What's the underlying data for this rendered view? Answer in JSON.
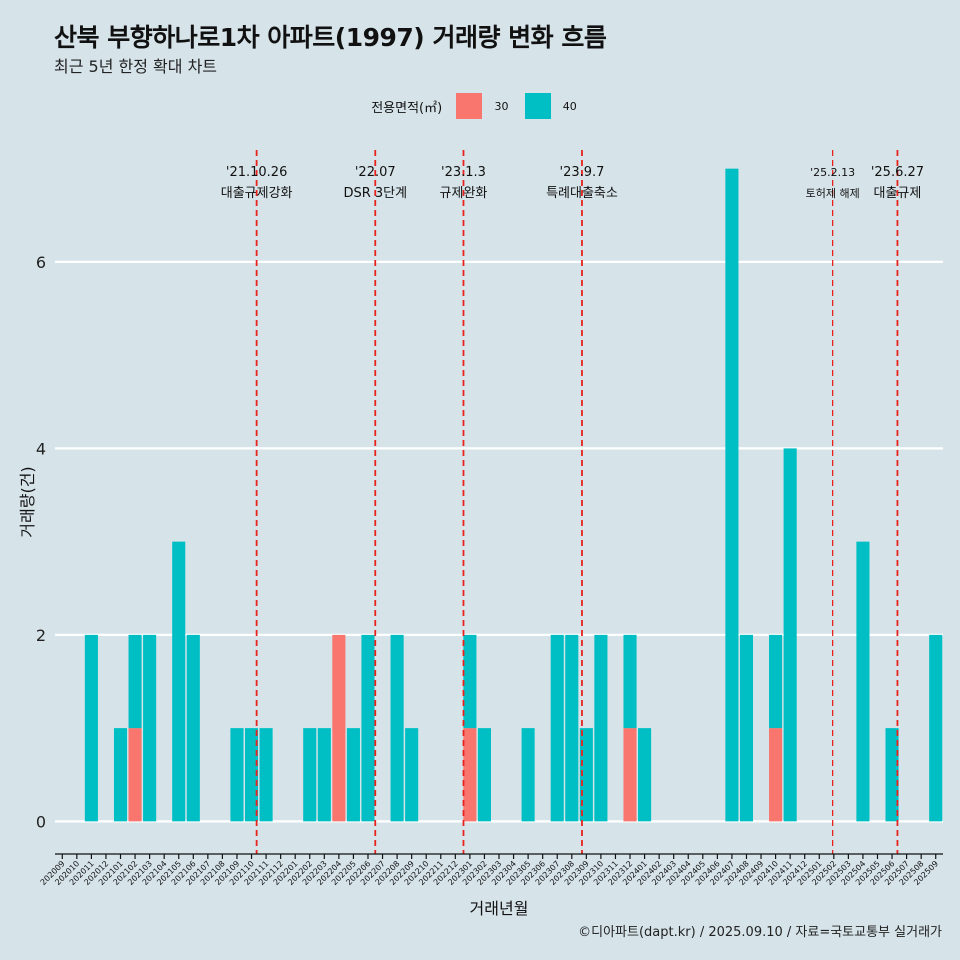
{
  "title": "산북 부향하나로1차 아파트(1997) 거래량 변화 흐름",
  "subtitle": "최근 5년 한정 확대 차트",
  "caption": "©디아파트(dapt.kr) / 2025.09.10 / 자료=국토교통부 실거래가",
  "legend": {
    "title": "전용면적(㎡)",
    "items": [
      {
        "label": "30",
        "color": "#f8766d"
      },
      {
        "label": "40",
        "color": "#00bfc4"
      }
    ]
  },
  "chart_data": {
    "type": "bar",
    "xlabel": "거래년월",
    "ylabel": "거래량(건)",
    "ylim": [
      -0.35,
      7.2
    ],
    "yticks": [
      0,
      2,
      4,
      6
    ],
    "grid": true,
    "legend_position": "top",
    "categories": [
      "202009",
      "202010",
      "202011",
      "202012",
      "202101",
      "202102",
      "202103",
      "202104",
      "202105",
      "202106",
      "202107",
      "202108",
      "202109",
      "202110",
      "202111",
      "202112",
      "202201",
      "202202",
      "202203",
      "202204",
      "202205",
      "202206",
      "202207",
      "202208",
      "202209",
      "202210",
      "202211",
      "202212",
      "202301",
      "202302",
      "202303",
      "202304",
      "202305",
      "202306",
      "202307",
      "202308",
      "202309",
      "202310",
      "202311",
      "202312",
      "202401",
      "202402",
      "202403",
      "202404",
      "202405",
      "202406",
      "202407",
      "202408",
      "202409",
      "202410",
      "202411",
      "202412",
      "202501",
      "202502",
      "202503",
      "202504",
      "202505",
      "202506",
      "202507",
      "202508",
      "202509"
    ],
    "series": [
      {
        "name": "30",
        "color": "#f8766d",
        "values": [
          0,
          0,
          0,
          0,
          0,
          1,
          0,
          0,
          0,
          0,
          0,
          0,
          0,
          0,
          0,
          0,
          0,
          0,
          0,
          2,
          0,
          0,
          0,
          0,
          0,
          0,
          0,
          0,
          1,
          0,
          0,
          0,
          0,
          0,
          0,
          0,
          0,
          0,
          0,
          1,
          0,
          0,
          0,
          0,
          0,
          0,
          0,
          0,
          0,
          1,
          0,
          0,
          0,
          0,
          0,
          0,
          0,
          0,
          0,
          0,
          0
        ]
      },
      {
        "name": "40",
        "color": "#00bfc4",
        "values": [
          0,
          0,
          2,
          0,
          1,
          1,
          2,
          0,
          3,
          2,
          0,
          0,
          1,
          1,
          1,
          0,
          0,
          1,
          1,
          0,
          1,
          2,
          0,
          2,
          1,
          0,
          0,
          0,
          1,
          1,
          0,
          0,
          1,
          0,
          2,
          2,
          1,
          2,
          0,
          1,
          1,
          0,
          0,
          0,
          0,
          0,
          7,
          2,
          0,
          1,
          4,
          0,
          0,
          0,
          0,
          3,
          0,
          1,
          0,
          0,
          2
        ]
      }
    ],
    "events": [
      {
        "date": "'21.10.26",
        "label": "대출규제강화",
        "month": "202110",
        "offset": 0.85
      },
      {
        "date": "'22.07",
        "label": "DSR 3단계",
        "month": "202207",
        "offset": 0.0
      },
      {
        "date": "'23.1.3",
        "label": "규제완화",
        "month": "202301",
        "offset": 0.06
      },
      {
        "date": "'23.9.7",
        "label": "특례대출축소",
        "month": "202309",
        "offset": 0.2
      },
      {
        "date": "'25.2.13",
        "label": "토허제 해제",
        "month": "202502",
        "offset": 0.42,
        "small": true
      },
      {
        "date": "'25.6.27",
        "label": "대출규제",
        "month": "202506",
        "offset": 0.87
      }
    ]
  }
}
